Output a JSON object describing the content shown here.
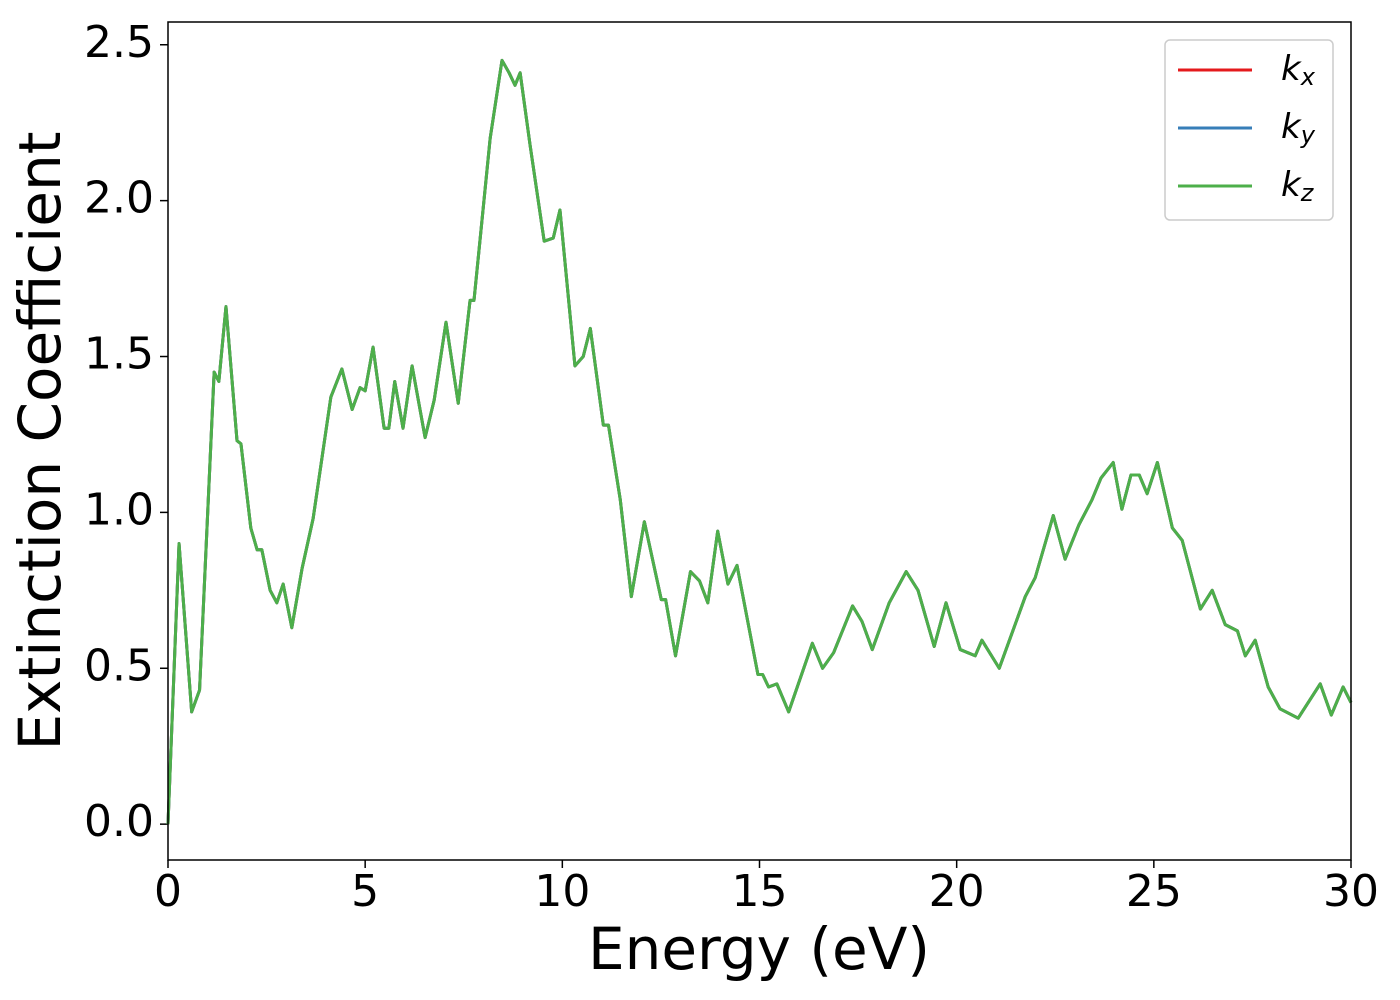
{
  "chart_data": {
    "type": "line",
    "xlabel": "Energy (eV)",
    "ylabel": "Extinction Coefficient",
    "x": [
      0,
      0.28,
      0.6,
      0.8,
      1.17,
      1.29,
      1.47,
      1.75,
      1.85,
      2.1,
      2.26,
      2.38,
      2.59,
      2.76,
      2.92,
      3.14,
      3.4,
      3.68,
      4.13,
      4.41,
      4.67,
      4.87,
      5.0,
      5.2,
      5.48,
      5.6,
      5.75,
      5.96,
      6.19,
      6.52,
      6.75,
      7.05,
      7.36,
      7.66,
      7.76,
      8.17,
      8.47,
      8.65,
      8.8,
      8.93,
      9.18,
      9.54,
      9.77,
      9.94,
      10.32,
      10.53,
      10.71,
      11.04,
      11.17,
      11.47,
      11.75,
      12.08,
      12.51,
      12.62,
      12.87,
      13.25,
      13.48,
      13.69,
      13.94,
      14.2,
      14.43,
      14.96,
      15.08,
      15.23,
      15.44,
      15.74,
      16.34,
      16.6,
      16.88,
      17.36,
      17.6,
      17.86,
      18.29,
      18.72,
      19.02,
      19.43,
      19.73,
      20.09,
      20.47,
      20.64,
      21.08,
      21.74,
      21.99,
      22.45,
      22.75,
      23.1,
      23.43,
      23.66,
      23.97,
      24.19,
      24.42,
      24.63,
      24.83,
      25.09,
      25.47,
      25.72,
      26.18,
      26.48,
      26.81,
      27.12,
      27.32,
      27.57,
      27.9,
      28.2,
      28.66,
      29.22,
      29.5,
      29.8,
      30
    ],
    "series": [
      {
        "name": "kx",
        "color": "#e41a1c",
        "values": [
          0,
          0.9,
          0.36,
          0.43,
          1.45,
          1.42,
          1.66,
          1.23,
          1.22,
          0.95,
          0.88,
          0.88,
          0.75,
          0.71,
          0.77,
          0.63,
          0.82,
          0.98,
          1.37,
          1.46,
          1.33,
          1.4,
          1.39,
          1.53,
          1.27,
          1.27,
          1.42,
          1.27,
          1.47,
          1.24,
          1.36,
          1.61,
          1.35,
          1.68,
          1.68,
          2.2,
          2.45,
          2.41,
          2.37,
          2.41,
          2.18,
          1.87,
          1.88,
          1.97,
          1.47,
          1.5,
          1.59,
          1.28,
          1.28,
          1.04,
          0.73,
          0.97,
          0.72,
          0.72,
          0.54,
          0.81,
          0.78,
          0.71,
          0.94,
          0.77,
          0.83,
          0.48,
          0.48,
          0.44,
          0.45,
          0.36,
          0.58,
          0.5,
          0.55,
          0.7,
          0.65,
          0.56,
          0.71,
          0.81,
          0.75,
          0.57,
          0.71,
          0.56,
          0.54,
          0.59,
          0.5,
          0.73,
          0.79,
          0.99,
          0.85,
          0.96,
          1.04,
          1.11,
          1.16,
          1.01,
          1.12,
          1.12,
          1.06,
          1.16,
          0.95,
          0.91,
          0.69,
          0.75,
          0.64,
          0.62,
          0.54,
          0.59,
          0.44,
          0.37,
          0.34,
          0.45,
          0.35,
          0.44,
          0.39
        ]
      },
      {
        "name": "ky",
        "color": "#377eb8",
        "values": [
          0,
          0.9,
          0.36,
          0.43,
          1.45,
          1.42,
          1.66,
          1.23,
          1.22,
          0.95,
          0.88,
          0.88,
          0.75,
          0.71,
          0.77,
          0.63,
          0.82,
          0.98,
          1.37,
          1.46,
          1.33,
          1.4,
          1.39,
          1.53,
          1.27,
          1.27,
          1.42,
          1.27,
          1.47,
          1.24,
          1.36,
          1.61,
          1.35,
          1.68,
          1.68,
          2.2,
          2.45,
          2.41,
          2.37,
          2.41,
          2.18,
          1.87,
          1.88,
          1.97,
          1.47,
          1.5,
          1.59,
          1.28,
          1.28,
          1.04,
          0.73,
          0.97,
          0.72,
          0.72,
          0.54,
          0.81,
          0.78,
          0.71,
          0.94,
          0.77,
          0.83,
          0.48,
          0.48,
          0.44,
          0.45,
          0.36,
          0.58,
          0.5,
          0.55,
          0.7,
          0.65,
          0.56,
          0.71,
          0.81,
          0.75,
          0.57,
          0.71,
          0.56,
          0.54,
          0.59,
          0.5,
          0.73,
          0.79,
          0.99,
          0.85,
          0.96,
          1.04,
          1.11,
          1.16,
          1.01,
          1.12,
          1.12,
          1.06,
          1.16,
          0.95,
          0.91,
          0.69,
          0.75,
          0.64,
          0.62,
          0.54,
          0.59,
          0.44,
          0.37,
          0.34,
          0.45,
          0.35,
          0.44,
          0.39
        ]
      },
      {
        "name": "kz",
        "color": "#4daf4a",
        "values": [
          0,
          0.9,
          0.36,
          0.43,
          1.45,
          1.42,
          1.66,
          1.23,
          1.22,
          0.95,
          0.88,
          0.88,
          0.75,
          0.71,
          0.77,
          0.63,
          0.82,
          0.98,
          1.37,
          1.46,
          1.33,
          1.4,
          1.39,
          1.53,
          1.27,
          1.27,
          1.42,
          1.27,
          1.47,
          1.24,
          1.36,
          1.61,
          1.35,
          1.68,
          1.68,
          2.2,
          2.45,
          2.41,
          2.37,
          2.41,
          2.18,
          1.87,
          1.88,
          1.97,
          1.47,
          1.5,
          1.59,
          1.28,
          1.28,
          1.04,
          0.73,
          0.97,
          0.72,
          0.72,
          0.54,
          0.81,
          0.78,
          0.71,
          0.94,
          0.77,
          0.83,
          0.48,
          0.48,
          0.44,
          0.45,
          0.36,
          0.58,
          0.5,
          0.55,
          0.7,
          0.65,
          0.56,
          0.71,
          0.81,
          0.75,
          0.57,
          0.71,
          0.56,
          0.54,
          0.59,
          0.5,
          0.73,
          0.79,
          0.99,
          0.85,
          0.96,
          1.04,
          1.11,
          1.16,
          1.01,
          1.12,
          1.12,
          1.06,
          1.16,
          0.95,
          0.91,
          0.69,
          0.75,
          0.64,
          0.62,
          0.54,
          0.59,
          0.44,
          0.37,
          0.34,
          0.45,
          0.35,
          0.44,
          0.39
        ]
      }
    ],
    "xlim": [
      0,
      30
    ],
    "xticks": [
      0,
      5,
      10,
      15,
      20,
      25,
      30
    ],
    "ylim": [
      -0.115,
      2.573
    ],
    "yticks": [
      {
        "value": 0,
        "label": "0.0"
      },
      0.5,
      {
        "value": 1,
        "label": "1.0"
      },
      1.5,
      {
        "value": 2,
        "label": "2.0"
      },
      2.5
    ],
    "grid": false,
    "legend": "upper right"
  }
}
